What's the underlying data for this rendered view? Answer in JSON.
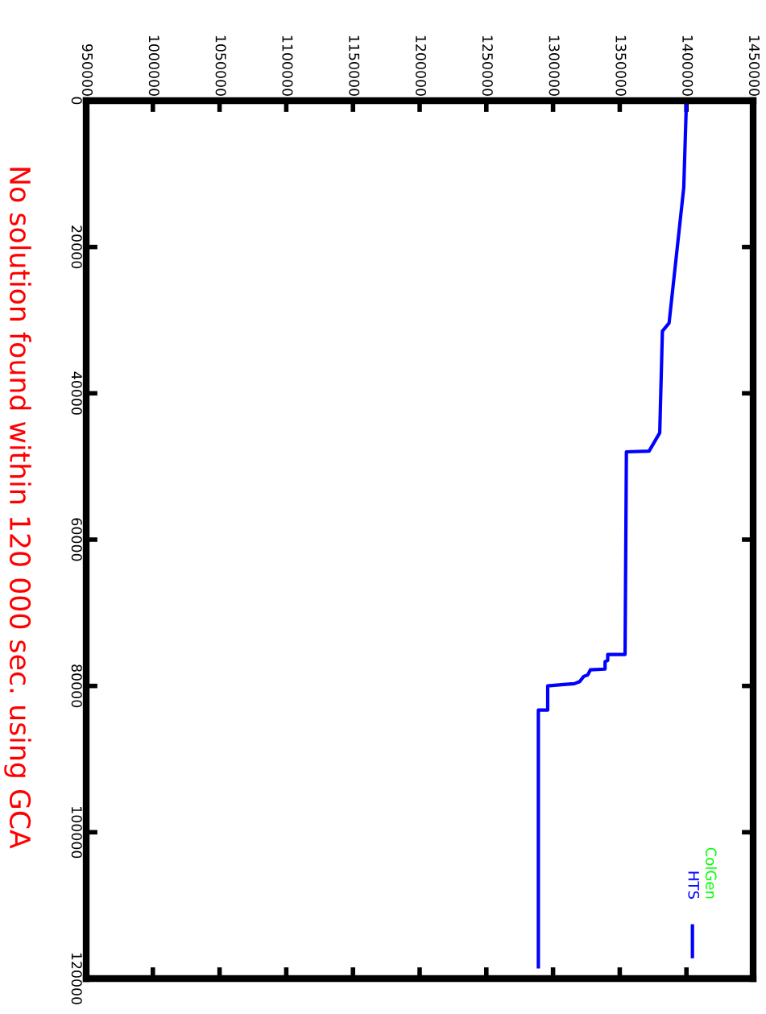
{
  "chart_data": {
    "type": "line",
    "annotations": [
      "No solution found within 120 000 sec. using GCA"
    ],
    "xlim": [
      950000,
      1450000
    ],
    "xticks": [
      950000,
      1000000,
      1050000,
      1100000,
      1150000,
      1200000,
      1250000,
      1300000,
      1350000,
      1400000,
      1450000
    ],
    "ylim": [
      120000,
      0
    ],
    "yticks": [
      0,
      20000,
      40000,
      60000,
      80000,
      100000,
      120000
    ],
    "grid": false,
    "legend": "bottom right",
    "line_style": "solid",
    "marker": "none",
    "series": [
      {
        "name": "ColGen",
        "color": "#00ff00"
      },
      {
        "name": "HTS",
        "color": "#0000ff",
        "x": [
          1440000,
          1400000,
          1398000,
          1387000,
          1382000,
          1380000,
          1372000,
          1355000,
          1354000,
          1341000,
          1341000,
          1339000,
          1339000,
          1328000,
          1326000,
          1323000,
          1320000,
          1316000,
          1308000,
          1296000,
          1296000,
          1289000,
          1289000
        ],
        "values": [
          0,
          100,
          11900,
          30400,
          31500,
          45400,
          47900,
          48000,
          75700,
          75700,
          76500,
          76700,
          77700,
          77800,
          78500,
          78700,
          79400,
          79700,
          79800,
          80000,
          83300,
          83300,
          118400
        ]
      }
    ]
  }
}
